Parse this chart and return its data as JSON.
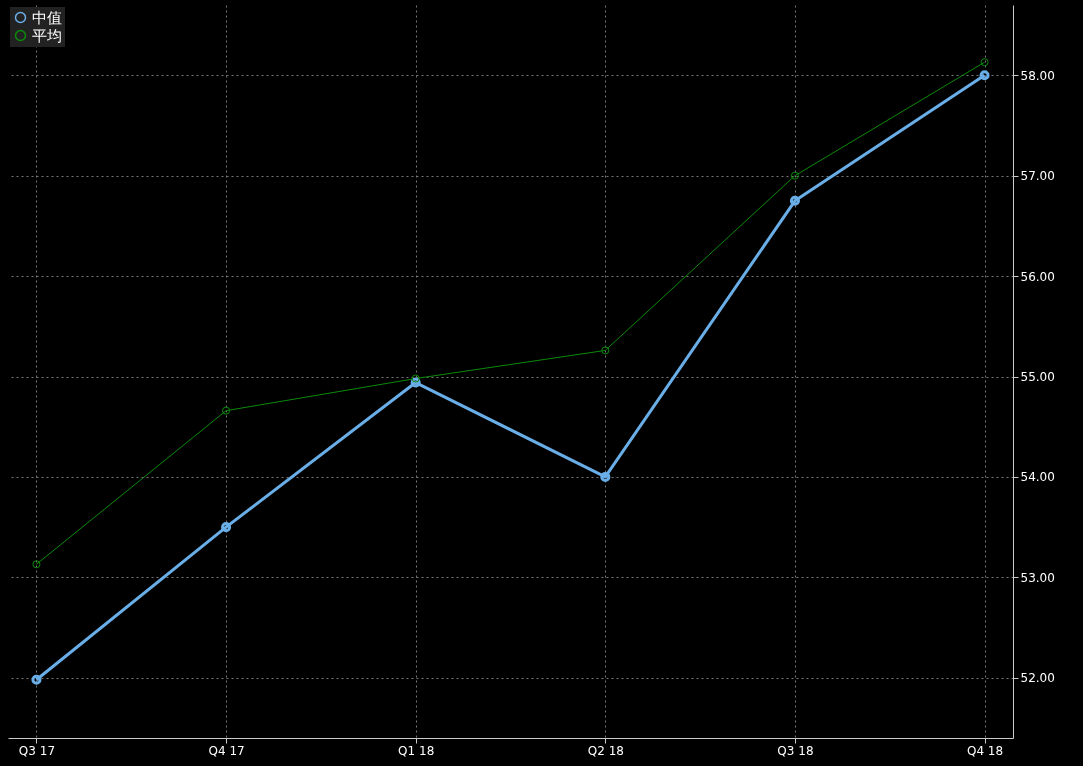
{
  "chart_data": {
    "type": "line",
    "categories": [
      "Q3 17",
      "Q4 17",
      "Q1 18",
      "Q2 18",
      "Q3 18",
      "Q4 18"
    ],
    "series": [
      {
        "name": "中值",
        "color": "#6aaee8",
        "values": [
          51.98,
          53.5,
          54.94,
          54.0,
          56.75,
          58.0
        ]
      },
      {
        "name": "平均",
        "color": "#0b8a0b",
        "values": [
          53.13,
          54.66,
          54.98,
          55.26,
          57.0,
          58.13
        ]
      }
    ],
    "ylim": [
      51.4,
      58.7
    ],
    "yticks": [
      {
        "value": 52,
        "label": "52.00"
      },
      {
        "value": 53,
        "label": "53.00"
      },
      {
        "value": 54,
        "label": "54.00"
      },
      {
        "value": 55,
        "label": "55.00"
      },
      {
        "value": 56,
        "label": "56.00"
      },
      {
        "value": 57,
        "label": "57.00"
      },
      {
        "value": 58,
        "label": "58.00"
      }
    ],
    "grid": true,
    "legend": "top left",
    "marker": "circle",
    "line_style": "solid"
  }
}
